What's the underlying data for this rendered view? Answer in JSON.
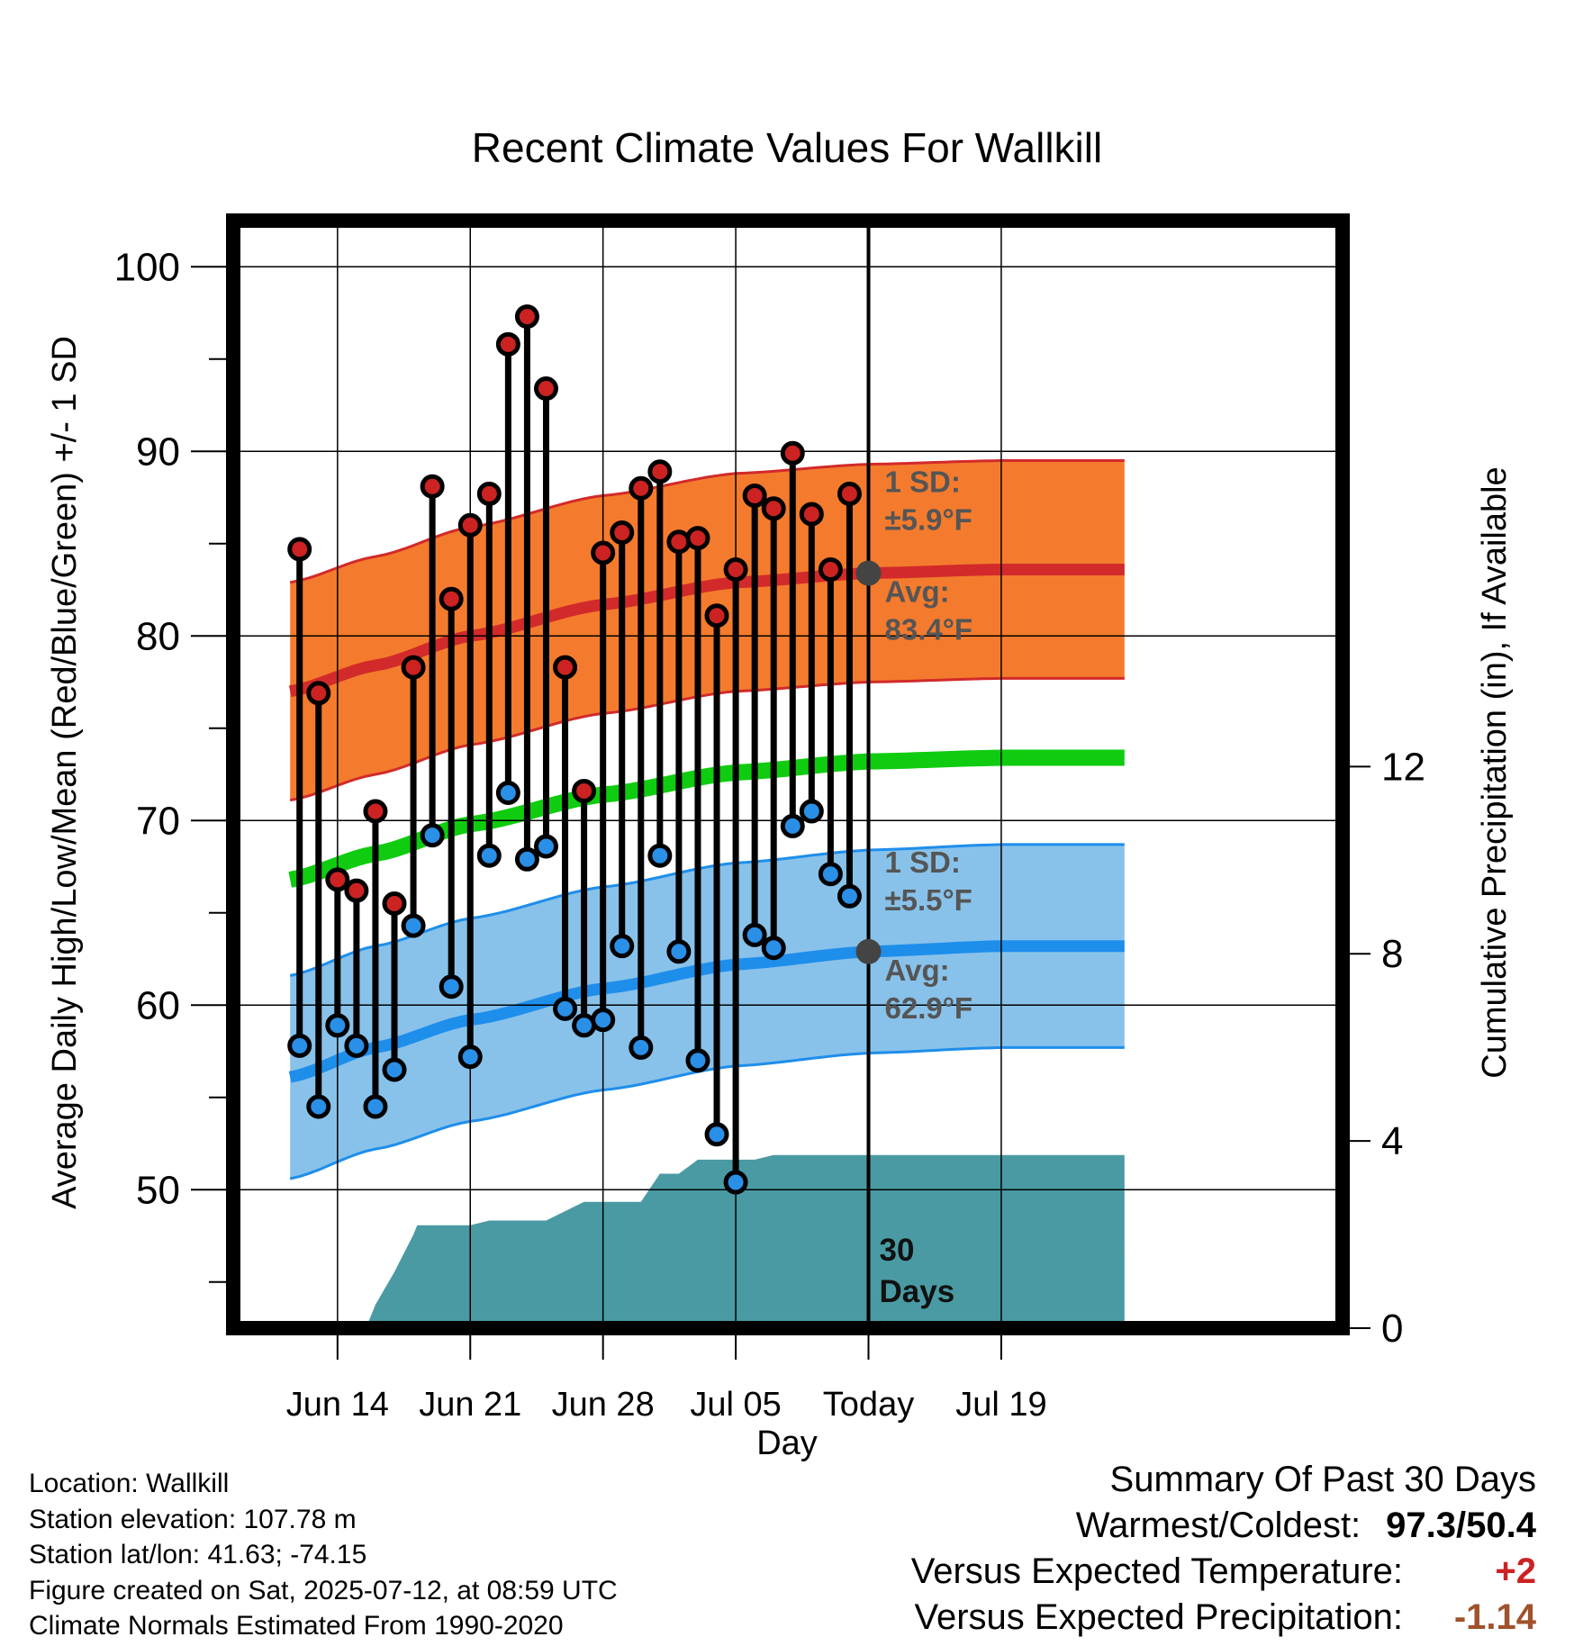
{
  "chart_data": {
    "type": "line",
    "title": "Recent Climate Values For Wallkill",
    "xlabel": "Day",
    "ylabel": "Average Daily High/Low/Mean (Red/Blue/Green) +/- 1 SD",
    "y2label": "Cumulative Precipitation (in), If Available",
    "ylim": [
      42.5,
      102.5
    ],
    "y2lim": [
      0,
      23.667
    ],
    "xlim": [
      -5.5,
      53.0
    ],
    "x_ticks": [
      {
        "day": 0,
        "label": "Jun 14"
      },
      {
        "day": 7,
        "label": "Jun 21"
      },
      {
        "day": 14,
        "label": "Jun 28"
      },
      {
        "day": 21,
        "label": "Jul 05"
      },
      {
        "day": 28,
        "label": "Today"
      },
      {
        "day": 35,
        "label": "Jul 19"
      }
    ],
    "y_ticks": [
      50,
      60,
      70,
      80,
      90,
      100
    ],
    "y2_ticks": [
      0,
      4,
      8,
      12
    ],
    "today_day": 28,
    "today_marker_label": "30 Days",
    "grid": true,
    "colors": {
      "high_fill": "#f47b2d",
      "high_line": "#d22a2a",
      "low_fill": "#88c2ea",
      "low_line": "#1e8eeb",
      "mean_line": "#10cc10",
      "precip_fill": "#4a9aa3",
      "high_dot": "#cc2222",
      "low_dot": "#2a8fe6",
      "annotation": "#555555"
    },
    "normal_x": [
      -2.5,
      2,
      7,
      14,
      21,
      28,
      35,
      41.5
    ],
    "normal_high": [
      77,
      78.4,
      80.0,
      81.7,
      82.9,
      83.4,
      83.6,
      83.6
    ],
    "normal_high_sd": 5.9,
    "normal_low": [
      56.1,
      57.7,
      59.2,
      60.9,
      62.2,
      62.9,
      63.2,
      63.2
    ],
    "normal_low_sd": 5.5,
    "normal_mean": [
      66.8,
      68.2,
      69.8,
      71.4,
      72.6,
      73.2,
      73.4,
      73.4
    ],
    "annotations": {
      "high_sd": {
        "label": "1 SD:",
        "value": "±5.9°F"
      },
      "high_avg": {
        "label": "Avg:",
        "value": "83.4°F"
      },
      "low_sd": {
        "label": "1 SD:",
        "value": "±5.5°F"
      },
      "low_avg": {
        "label": "Avg:",
        "value": "62.9°F"
      }
    },
    "series": [
      {
        "name": "High",
        "x": [
          -2,
          -1,
          0,
          1,
          2,
          3,
          4,
          5,
          6,
          7,
          8,
          9,
          10,
          11,
          12,
          13,
          14,
          15,
          16,
          17,
          18,
          19,
          20,
          21,
          22,
          23,
          24,
          25,
          26,
          27
        ],
        "values": [
          84.7,
          76.9,
          66.8,
          66.2,
          70.5,
          65.5,
          78.3,
          88.1,
          82.0,
          86.0,
          87.7,
          95.8,
          97.3,
          93.4,
          78.3,
          71.6,
          84.5,
          85.6,
          88.0,
          88.9,
          85.1,
          85.3,
          81.1,
          83.6,
          87.6,
          86.9,
          89.9,
          86.6,
          83.6,
          87.7
        ]
      },
      {
        "name": "Low",
        "x": [
          -2,
          -1,
          0,
          1,
          2,
          3,
          4,
          5,
          6,
          7,
          8,
          9,
          10,
          11,
          12,
          13,
          14,
          15,
          16,
          17,
          18,
          19,
          20,
          21,
          22,
          23,
          24,
          25,
          26,
          27
        ],
        "values": [
          57.8,
          54.5,
          58.9,
          57.8,
          54.5,
          56.5,
          64.3,
          69.2,
          61.0,
          57.2,
          68.1,
          71.5,
          67.9,
          68.6,
          59.8,
          58.9,
          59.2,
          63.2,
          57.7,
          68.1,
          62.9,
          57.0,
          53.0,
          50.4,
          63.8,
          63.1,
          69.7,
          70.5,
          67.1,
          65.9
        ]
      }
    ],
    "precip_x": [
      -5.5,
      -4,
      -3,
      -2.5,
      -1,
      0,
      1,
      1.5,
      2,
      3,
      4,
      4.2,
      6,
      7,
      8,
      9,
      10,
      11,
      12,
      13,
      14,
      14.3,
      15,
      16,
      17,
      18,
      19,
      20,
      21,
      21.5,
      22,
      23,
      24,
      25,
      26,
      27,
      28,
      35,
      41.5
    ],
    "precip_cum": [
      0,
      0,
      0,
      0,
      0,
      0,
      0,
      0,
      0.5,
      1.2,
      2.0,
      2.2,
      2.2,
      2.2,
      2.3,
      2.3,
      2.3,
      2.3,
      2.5,
      2.7,
      2.7,
      2.7,
      2.7,
      2.7,
      3.3,
      3.3,
      3.6,
      3.6,
      3.6,
      3.6,
      3.6,
      3.7,
      3.7,
      3.7,
      3.7,
      3.7,
      3.7,
      3.7,
      3.7
    ]
  },
  "footer": {
    "location": "Location: Wallkill",
    "elevation": "Station elevation: 107.78 m",
    "latlon": "Station lat/lon: 41.63; -74.15",
    "created": "Figure created on Sat, 2025-07-12, at 08:59 UTC",
    "normals": "Climate Normals Estimated From 1990-2020"
  },
  "summary": {
    "heading": "Summary Of Past 30 Days",
    "warm_cold_label": "Warmest/Coldest:",
    "warm_cold_value": "97.3/50.4",
    "temp_label": "Versus Expected Temperature:",
    "temp_value": "+2",
    "temp_color": "#cc2222",
    "precip_label": "Versus Expected Precipitation:",
    "precip_value": "-1.14",
    "precip_color": "#a0522d"
  }
}
